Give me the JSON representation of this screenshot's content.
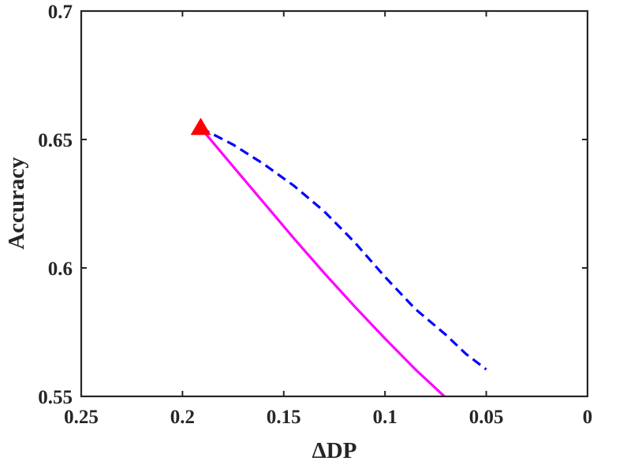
{
  "chart_data": {
    "type": "line",
    "title": "",
    "xlabel": "ΔDP",
    "ylabel": "Accuracy",
    "xlim": [
      0,
      0.25
    ],
    "ylim": [
      0.55,
      0.7
    ],
    "x_reversed": true,
    "xticks": [
      0.25,
      0.2,
      0.15,
      0.1,
      0.05,
      0
    ],
    "xtick_labels": [
      "0.25",
      "0.2",
      "0.15",
      "0.1",
      "0.05",
      "0"
    ],
    "yticks": [
      0.55,
      0.6,
      0.65,
      0.7
    ],
    "ytick_labels": [
      "0.55",
      "0.6",
      "0.65",
      "0.7"
    ],
    "grid": false,
    "legend": "none",
    "series": [
      {
        "style": "dashed",
        "color": "#0000FF",
        "points": [
          [
            0.191,
            0.6545
          ],
          [
            0.175,
            0.648
          ],
          [
            0.16,
            0.6405
          ],
          [
            0.145,
            0.632
          ],
          [
            0.13,
            0.622
          ],
          [
            0.115,
            0.61
          ],
          [
            0.1,
            0.5965
          ],
          [
            0.085,
            0.584
          ],
          [
            0.07,
            0.574
          ],
          [
            0.06,
            0.5665
          ],
          [
            0.05,
            0.5605
          ]
        ]
      },
      {
        "style": "solid",
        "color": "#FF00FF",
        "points": [
          [
            0.191,
            0.6545
          ],
          [
            0.175,
            0.6395
          ],
          [
            0.16,
            0.6255
          ],
          [
            0.145,
            0.6115
          ],
          [
            0.13,
            0.598
          ],
          [
            0.115,
            0.585
          ],
          [
            0.1,
            0.5725
          ],
          [
            0.085,
            0.5605
          ],
          [
            0.07,
            0.5495
          ],
          [
            0.06,
            0.5415
          ],
          [
            0.054,
            0.5365
          ]
        ]
      }
    ],
    "markers": [
      {
        "shape": "triangle",
        "color": "#FF0000",
        "x": 0.191,
        "y": 0.6545
      }
    ]
  }
}
